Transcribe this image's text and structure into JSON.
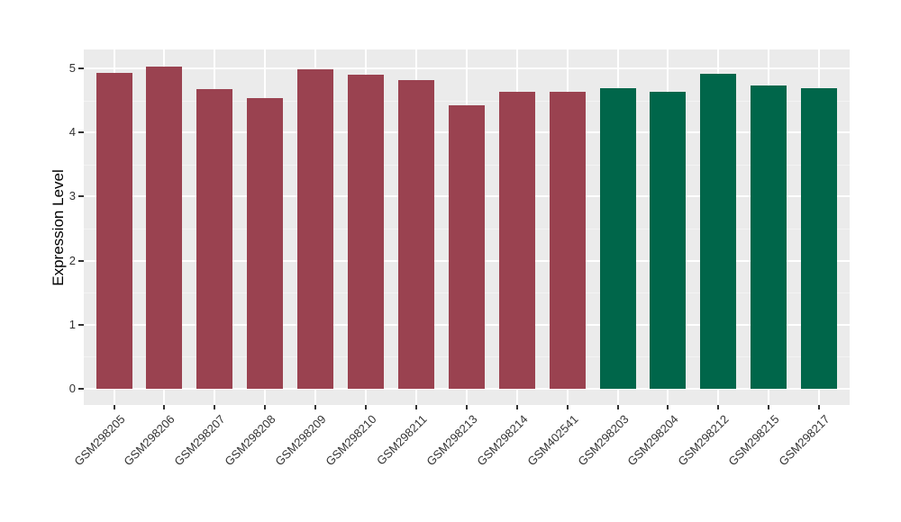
{
  "figure": {
    "background": "#FFFFFF",
    "panel_background": "#EBEBEB",
    "grid_major_color": "#FFFFFF",
    "grid_minor_color": "#F4F4F4",
    "axis_text_color": "#333333",
    "tick_mark_color": "#333333"
  },
  "chart_data": {
    "type": "bar",
    "title": "",
    "xlabel": "",
    "ylabel": "Expression Level",
    "categories": [
      "GSM298205",
      "GSM298206",
      "GSM298207",
      "GSM298208",
      "GSM298209",
      "GSM298210",
      "GSM298211",
      "GSM298213",
      "GSM298214",
      "GSM402541",
      "GSM298203",
      "GSM298204",
      "GSM298212",
      "GSM298215",
      "GSM298217"
    ],
    "values": [
      4.93,
      5.03,
      4.67,
      4.53,
      4.98,
      4.9,
      4.82,
      4.42,
      4.63,
      4.64,
      4.69,
      4.64,
      4.92,
      4.73,
      4.69
    ],
    "groups": [
      "group1",
      "group1",
      "group1",
      "group1",
      "group1",
      "group1",
      "group1",
      "group1",
      "group1",
      "group1",
      "group2",
      "group2",
      "group2",
      "group2",
      "group2"
    ],
    "group_colors": {
      "group1": "#9A4250",
      "group2": "#00664A"
    },
    "yticks": [
      0,
      1,
      2,
      3,
      4,
      5
    ],
    "ylim": [
      -0.25,
      5.3
    ],
    "grid": "white major gridlines at integers and vertical category centers, minor gridlines at half-integers, on gray panel",
    "legend": "none",
    "x_label_rotation_deg": 45
  }
}
